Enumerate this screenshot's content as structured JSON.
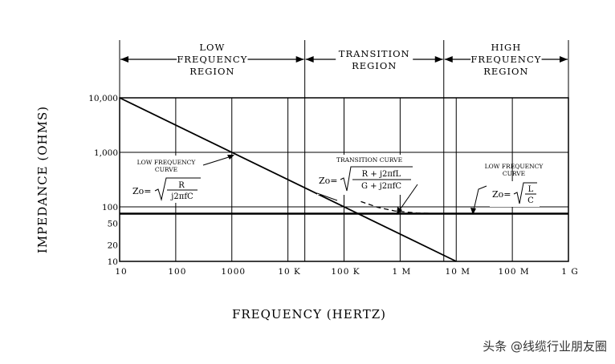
{
  "chart_data": {
    "type": "line",
    "x_scale": "log",
    "y_scale": "log",
    "xlim": [
      10,
      1000000000
    ],
    "ylim": [
      10,
      10000
    ],
    "xlabel": "FREQUENCY (HERTZ)",
    "ylabel": "IMPEDANCE (OHMS)",
    "x_ticks": [
      {
        "v": 10,
        "label": "10"
      },
      {
        "v": 100,
        "label": "100"
      },
      {
        "v": 1000,
        "label": "1000"
      },
      {
        "v": 10000,
        "label": "10 K"
      },
      {
        "v": 100000,
        "label": "100 K"
      },
      {
        "v": 1000000,
        "label": "1 M"
      },
      {
        "v": 10000000,
        "label": "10 M"
      },
      {
        "v": 100000000,
        "label": "100 M"
      },
      {
        "v": 1000000000,
        "label": "1 G"
      }
    ],
    "y_ticks": [
      {
        "v": 10000,
        "label": "10,000"
      },
      {
        "v": 1000,
        "label": "1,000"
      },
      {
        "v": 100,
        "label": "100"
      },
      {
        "v": 50,
        "label": "50"
      },
      {
        "v": 20,
        "label": "20"
      },
      {
        "v": 10,
        "label": "10"
      }
    ],
    "regions": [
      {
        "lines": [
          "LOW",
          "FREQUENCY",
          "REGION"
        ],
        "from": 10,
        "to": 20000
      },
      {
        "lines": [
          "TRANSITION",
          "REGION"
        ],
        "from": 20000,
        "to": 6000000
      },
      {
        "lines": [
          "HIGH",
          "FREQUENCY",
          "REGION"
        ],
        "from": 6000000,
        "to": 1000000000
      }
    ],
    "series": [
      {
        "style": "solid",
        "points": [
          [
            10,
            10000
          ],
          [
            10000000,
            10
          ]
        ]
      },
      {
        "style": "heavy",
        "points": [
          [
            10,
            75
          ],
          [
            1000000000,
            75
          ]
        ]
      },
      {
        "style": "dashed",
        "points": [
          [
            200000,
            125
          ],
          [
            400000,
            98
          ],
          [
            800000,
            84
          ],
          [
            2000000,
            77
          ],
          [
            6000000,
            75
          ]
        ]
      }
    ],
    "annotations": [
      {
        "lines": [
          "LOW FREQUENCY",
          "CURVE"
        ],
        "formula": "Zo=",
        "num": "R",
        "den": "j2πfC"
      },
      {
        "lines": [
          "TRANSITION CURVE"
        ],
        "formula": "Zo=",
        "num": "R  +  j2πfL",
        "den": "G  +  j2πfC"
      },
      {
        "lines": [
          "LOW FREQUENCY",
          "CURVE"
        ],
        "formula": "Zo=",
        "num": "L",
        "den": "C"
      }
    ]
  },
  "watermark": "头条 @线缆行业朋友圈"
}
